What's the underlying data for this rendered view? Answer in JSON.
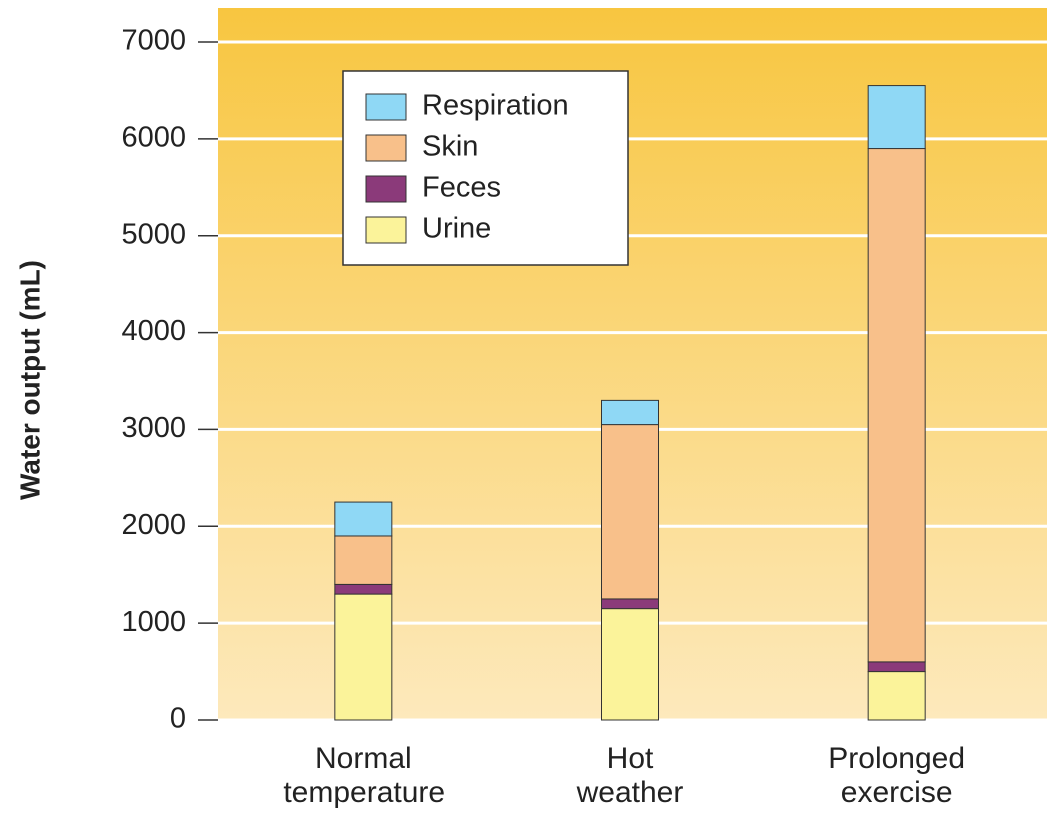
{
  "chart_data": {
    "type": "stacked_bar",
    "y_label": "Water output (mL)",
    "categories": [
      "Normal temperature",
      "Hot weather",
      "Prolonged exercise"
    ],
    "series": [
      {
        "name": "Urine",
        "color": "#fbf39a",
        "values": [
          1300,
          1150,
          500
        ]
      },
      {
        "name": "Feces",
        "color": "#8b3a7a",
        "values": [
          100,
          100,
          100
        ]
      },
      {
        "name": "Skin",
        "color": "#f8c08a",
        "values": [
          500,
          1800,
          5300
        ]
      },
      {
        "name": "Respiration",
        "color": "#8fd8f5",
        "values": [
          350,
          250,
          650
        ]
      }
    ],
    "ylim": [
      0,
      7000
    ],
    "yticks": [
      0,
      1000,
      2000,
      3000,
      4000,
      5000,
      6000,
      7000
    ],
    "grid": true
  }
}
